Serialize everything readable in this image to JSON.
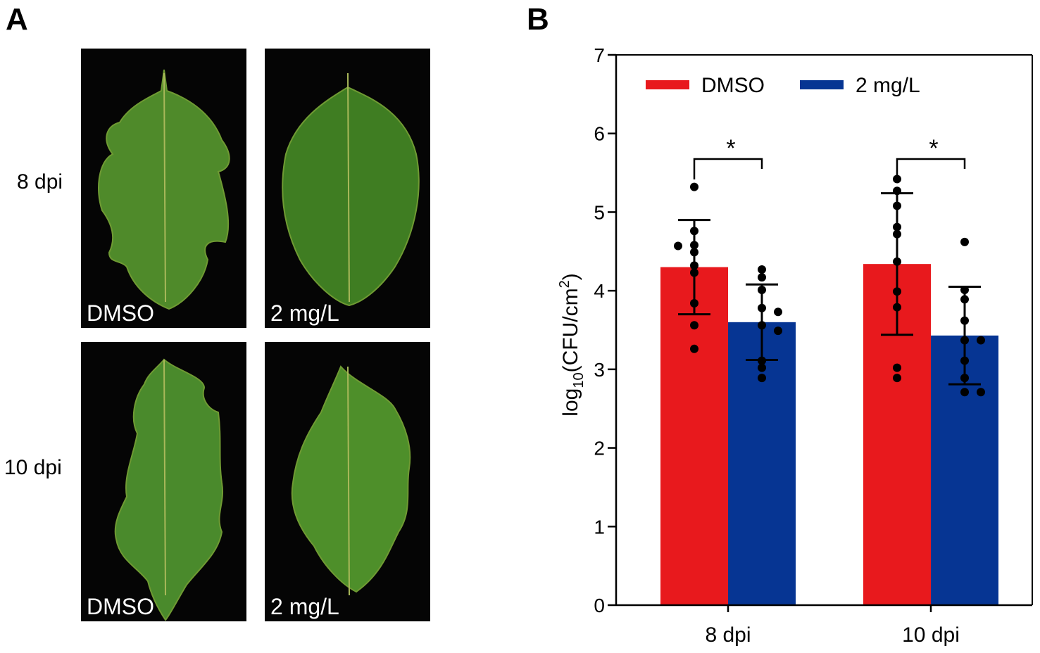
{
  "panel_a": {
    "label": "A",
    "row_labels": [
      "8 dpi",
      "10 dpi"
    ],
    "photos": [
      {
        "caption": "DMSO",
        "row": 0,
        "col": 0
      },
      {
        "caption": "2 mg/L",
        "row": 0,
        "col": 1
      },
      {
        "caption": "DMSO",
        "row": 1,
        "col": 0
      },
      {
        "caption": "2 mg/L",
        "row": 1,
        "col": 1
      }
    ]
  },
  "chart_data": {
    "panel_label": "B",
    "type": "bar",
    "title": "",
    "xlabel": "",
    "ylabel_main": "log",
    "ylabel_sub": "10",
    "ylabel_rest": "(CFU/cm",
    "ylabel_sup": "2",
    "ylabel_end": ")",
    "ylim": [
      0,
      7
    ],
    "yticks": [
      0,
      1,
      2,
      3,
      4,
      5,
      6,
      7
    ],
    "grid": false,
    "legend_position": "top",
    "categories": [
      "8 dpi",
      "10 dpi"
    ],
    "significance": [
      "*",
      "*"
    ],
    "series": [
      {
        "name": "DMSO",
        "color": "#e8191d",
        "values": [
          4.3,
          4.34
        ],
        "sd": [
          0.6,
          0.9
        ],
        "points": [
          [
            5.32,
            4.76,
            4.58,
            4.49,
            4.57,
            4.32,
            4.23,
            3.84,
            3.56,
            3.26
          ],
          [
            5.42,
            5.27,
            5.08,
            4.81,
            4.72,
            4.37,
            3.99,
            3.79,
            3.02,
            2.89
          ]
        ]
      },
      {
        "name": "2 mg/L",
        "color": "#063593",
        "values": [
          3.6,
          3.43
        ],
        "sd": [
          0.48,
          0.62
        ],
        "points": [
          [
            4.27,
            4.17,
            4.01,
            3.78,
            3.73,
            3.56,
            3.49,
            3.11,
            3.02,
            2.89
          ],
          [
            4.62,
            4.01,
            3.89,
            3.62,
            3.37,
            3.37,
            3.11,
            2.89,
            2.71,
            2.71
          ]
        ]
      }
    ]
  }
}
